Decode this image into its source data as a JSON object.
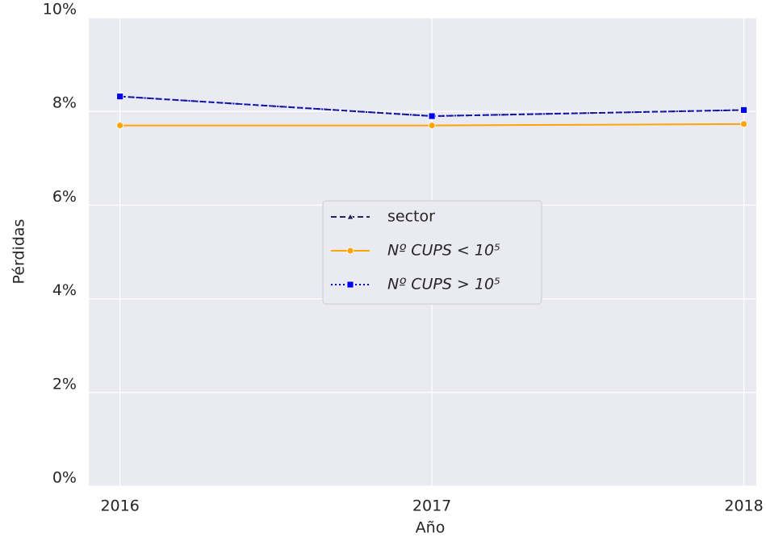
{
  "chart_data": {
    "type": "line",
    "x_label": "Año",
    "y_label": "Pérdidas",
    "x": [
      2016,
      2017,
      2018
    ],
    "xlim": [
      2015.9,
      2018.04
    ],
    "xticks": [
      2016,
      2017,
      2018
    ],
    "ylim": [
      0,
      10
    ],
    "yticks": [
      {
        "value": 0,
        "label": "0%"
      },
      {
        "value": 2,
        "label": "2%"
      },
      {
        "value": 4,
        "label": "4%"
      },
      {
        "value": 6,
        "label": "6%"
      },
      {
        "value": 8,
        "label": "8%"
      },
      {
        "value": 10,
        "label": "10%"
      }
    ],
    "grid": true,
    "legend": "center",
    "series": [
      {
        "name": "sector",
        "color": "#23235a",
        "dash": "dashed",
        "marker": "triangle",
        "values": [
          8.32,
          7.9,
          8.03
        ]
      },
      {
        "name": "Nº CUPS < 10⁵",
        "color": "#ffa500",
        "dash": "solid",
        "marker": "circle",
        "values": [
          7.7,
          7.7,
          7.73
        ]
      },
      {
        "name": "Nº CUPS > 10⁵",
        "color": "#0000ff",
        "dash": "dotted",
        "marker": "square",
        "values": [
          8.32,
          7.9,
          8.03
        ]
      }
    ]
  }
}
